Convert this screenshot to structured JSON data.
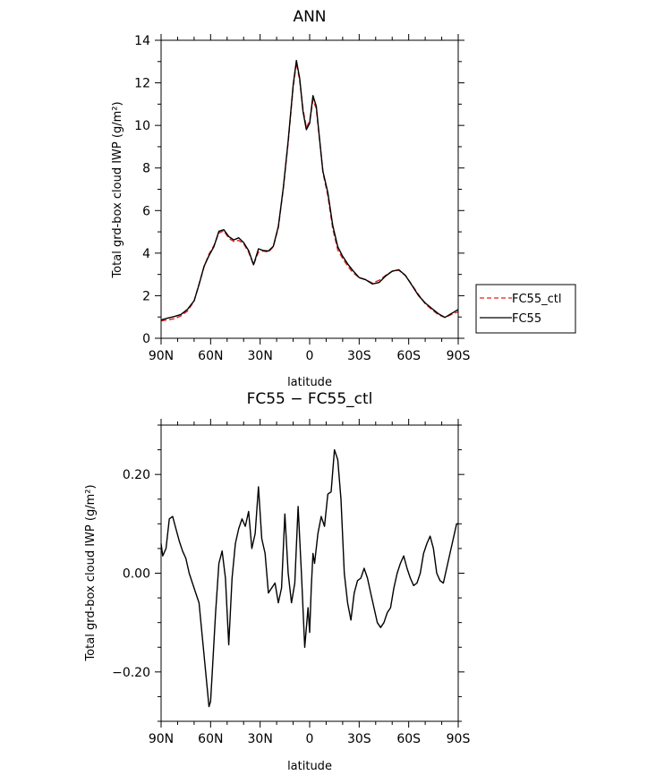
{
  "chart_data": [
    {
      "type": "line",
      "title": "ANN",
      "xlabel": "latitude",
      "ylabel": "Total grd-box cloud IWP (g/m²)",
      "x_tick_labels": [
        "90N",
        "60N",
        "30N",
        "0",
        "30S",
        "60S",
        "90S"
      ],
      "x_tick_values": [
        90,
        60,
        30,
        0,
        -30,
        -60,
        -90
      ],
      "xlim": [
        90,
        -90
      ],
      "ylim": [
        0,
        14
      ],
      "y_ticks": [
        0,
        2,
        4,
        6,
        8,
        10,
        12,
        14
      ],
      "y_tick_labels": [
        "0",
        "2",
        "4",
        "6",
        "8",
        "10",
        "12",
        "14"
      ],
      "legend_placement": "right-outside",
      "x": [
        90,
        86,
        82,
        78,
        74,
        70,
        67,
        64,
        61,
        58,
        55,
        52,
        49,
        46,
        43,
        40,
        37,
        34,
        31,
        28,
        25,
        22,
        19,
        16,
        13,
        10,
        8,
        6,
        4,
        2,
        0,
        -2,
        -4,
        -6,
        -8,
        -11,
        -14,
        -17,
        -20,
        -23,
        -26,
        -30,
        -34,
        -38,
        -42,
        -46,
        -50,
        -54,
        -58,
        -62,
        -66,
        -70,
        -74,
        -78,
        -82,
        -86,
        -90
      ],
      "series": [
        {
          "name": "FC55_ctl",
          "color": "#e02020",
          "dash": "dashed",
          "values": [
            0.82,
            0.86,
            0.92,
            1.05,
            1.28,
            1.75,
            2.55,
            3.35,
            3.95,
            4.35,
            4.95,
            5.05,
            4.7,
            4.55,
            4.6,
            4.45,
            4.05,
            3.45,
            4.05,
            4.1,
            4.05,
            4.3,
            5.2,
            7.0,
            9.2,
            11.8,
            12.95,
            12.1,
            10.75,
            9.9,
            10.2,
            11.2,
            10.8,
            9.3,
            7.8,
            6.7,
            5.15,
            4.15,
            3.75,
            3.4,
            3.1,
            2.85,
            2.75,
            2.6,
            2.72,
            2.95,
            3.15,
            3.2,
            2.95,
            2.5,
            2.05,
            1.62,
            1.35,
            1.1,
            0.98,
            1.12,
            1.25
          ]
        },
        {
          "name": "FC55",
          "color": "#000000",
          "dash": "solid",
          "values": [
            0.86,
            0.95,
            1.02,
            1.12,
            1.36,
            1.76,
            2.52,
            3.38,
            3.88,
            4.3,
            5.03,
            5.1,
            4.78,
            4.62,
            4.72,
            4.5,
            4.12,
            3.45,
            4.2,
            4.12,
            4.1,
            4.32,
            5.25,
            7.05,
            9.28,
            11.9,
            13.05,
            12.2,
            10.65,
            9.8,
            10.1,
            11.4,
            10.9,
            9.35,
            7.85,
            6.85,
            5.3,
            4.3,
            3.85,
            3.5,
            3.2,
            2.85,
            2.75,
            2.55,
            2.62,
            2.92,
            3.15,
            3.22,
            2.95,
            2.48,
            2.0,
            1.66,
            1.4,
            1.15,
            0.98,
            1.17,
            1.35
          ]
        }
      ]
    },
    {
      "type": "line",
      "title": "FC55 − FC55_ctl",
      "xlabel": "latitude",
      "ylabel": "Total grd-box cloud IWP (g/m²)",
      "x_tick_labels": [
        "90N",
        "60N",
        "30N",
        "0",
        "30S",
        "60S",
        "90S"
      ],
      "x_tick_values": [
        90,
        60,
        30,
        0,
        -30,
        -60,
        -90
      ],
      "xlim": [
        90,
        -90
      ],
      "ylim": [
        -0.3,
        0.3
      ],
      "y_ticks": [
        -0.2,
        0.0,
        0.2
      ],
      "y_tick_labels": [
        "−0.20",
        "0.00",
        "0.20"
      ],
      "x": [
        90,
        89,
        87,
        85,
        83,
        81,
        79,
        77,
        75,
        73,
        71,
        69,
        67,
        65,
        63,
        61,
        60,
        59,
        57,
        55,
        53,
        51,
        49,
        47,
        45,
        43,
        41,
        39,
        37,
        35,
        33,
        31,
        29,
        27,
        25,
        23,
        21,
        19,
        17,
        15,
        13,
        11,
        9,
        7,
        5,
        3,
        1,
        0,
        -1,
        -2,
        -3,
        -5,
        -7,
        -9,
        -11,
        -13,
        -15,
        -17,
        -19,
        -21,
        -23,
        -25,
        -27,
        -29,
        -31,
        -33,
        -35,
        -37,
        -39,
        -41,
        -43,
        -45,
        -47,
        -49,
        -51,
        -53,
        -55,
        -57,
        -59,
        -61,
        -63,
        -65,
        -67,
        -69,
        -71,
        -73,
        -75,
        -77,
        -79,
        -81,
        -83,
        -85,
        -87,
        -89,
        -90
      ],
      "series": [
        {
          "name": "",
          "color": "#000000",
          "dash": "solid",
          "values": [
            0.06,
            0.035,
            0.05,
            0.11,
            0.115,
            0.09,
            0.065,
            0.045,
            0.03,
            0.0,
            -0.02,
            -0.04,
            -0.06,
            -0.13,
            -0.2,
            -0.27,
            -0.26,
            -0.2,
            -0.08,
            0.02,
            0.045,
            -0.01,
            -0.145,
            -0.01,
            0.06,
            0.09,
            0.11,
            0.095,
            0.125,
            0.05,
            0.08,
            0.175,
            0.07,
            0.04,
            -0.04,
            -0.03,
            -0.02,
            -0.06,
            -0.03,
            0.12,
            0.0,
            -0.06,
            -0.02,
            0.135,
            0.0,
            -0.15,
            -0.07,
            -0.12,
            -0.03,
            0.04,
            0.02,
            0.08,
            0.115,
            0.095,
            0.16,
            0.165,
            0.25,
            0.23,
            0.15,
            0.0,
            -0.06,
            -0.095,
            -0.04,
            -0.015,
            -0.01,
            0.01,
            -0.01,
            -0.04,
            -0.07,
            -0.1,
            -0.11,
            -0.1,
            -0.08,
            -0.07,
            -0.03,
            0.0,
            0.02,
            0.035,
            0.01,
            -0.01,
            -0.025,
            -0.02,
            0.0,
            0.04,
            0.06,
            0.075,
            0.05,
            0.0,
            -0.015,
            -0.02,
            0.01,
            0.04,
            0.07,
            0.1,
            0.1
          ]
        }
      ]
    }
  ]
}
